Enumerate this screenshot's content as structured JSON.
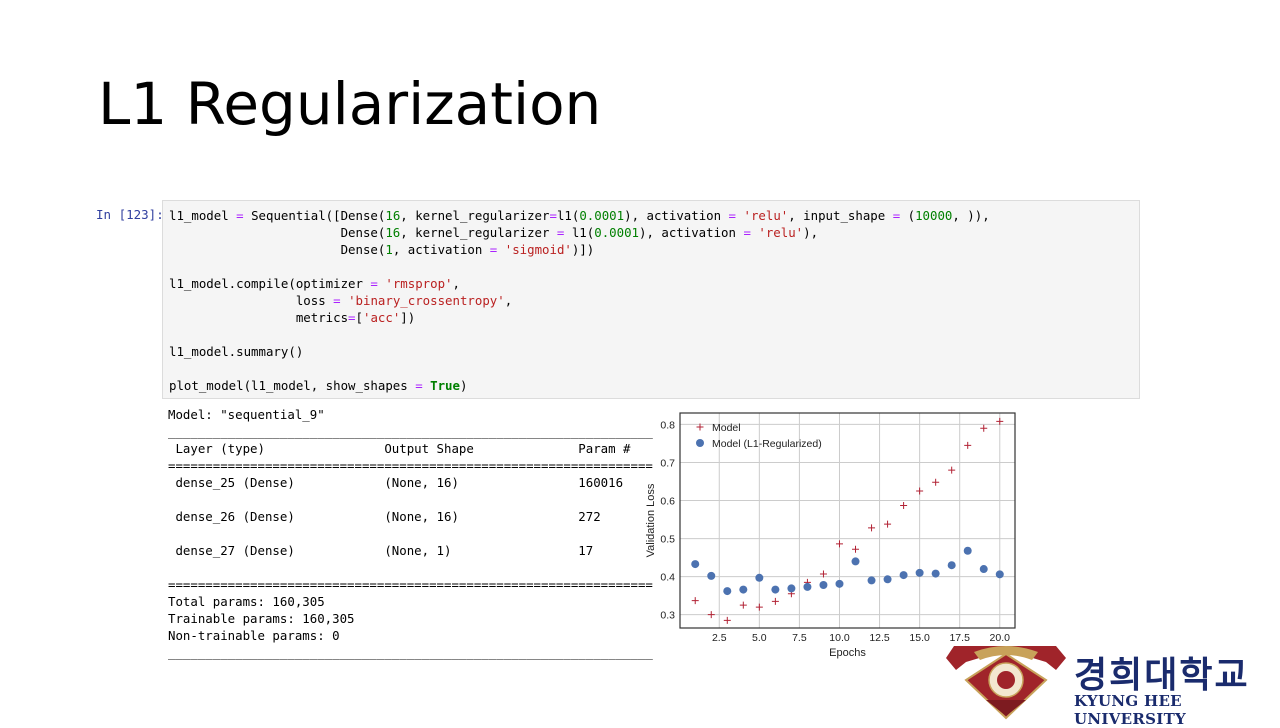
{
  "slide": {
    "title": "L1 Regularization"
  },
  "cell": {
    "prompt": "In [123]:",
    "code_lines": [
      "l1_model = Sequential([Dense(16, kernel_regularizer=l1(0.0001), activation = 'relu', input_shape = (10000, )),",
      "                       Dense(16, kernel_regularizer = l1(0.0001), activation = 'relu'),",
      "                       Dense(1, activation = 'sigmoid')])",
      "",
      "l1_model.compile(optimizer = 'rmsprop',",
      "                 loss = 'binary_crossentropy',",
      "                 metrics=['acc'])",
      "",
      "l1_model.summary()",
      "",
      "plot_model(l1_model, show_shapes = True)"
    ]
  },
  "summary": {
    "lines": [
      "Model: \"sequential_9\"",
      "_________________________________________________________________",
      " Layer (type)                Output Shape              Param #",
      "=================================================================",
      " dense_25 (Dense)            (None, 16)                160016",
      "",
      " dense_26 (Dense)            (None, 16)                272",
      "",
      " dense_27 (Dense)            (None, 1)                 17",
      "",
      "=================================================================",
      "Total params: 160,305",
      "Trainable params: 160,305",
      "Non-trainable params: 0",
      "_________________________________________________________________"
    ]
  },
  "chart_data": {
    "type": "scatter",
    "xlabel": "Epochs",
    "ylabel": "Validation Loss",
    "xlim": [
      0.05,
      20.95
    ],
    "ylim": [
      0.265,
      0.83
    ],
    "xticks": [
      "2.5",
      "5.0",
      "7.5",
      "10.0",
      "12.5",
      "15.0",
      "17.5",
      "20.0"
    ],
    "yticks": [
      "0.3",
      "0.4",
      "0.5",
      "0.6",
      "0.7",
      "0.8"
    ],
    "grid": true,
    "legend_position": "top-left",
    "series": [
      {
        "name": "Model",
        "marker": "plus",
        "color": "#b22234",
        "x": [
          1,
          2,
          3,
          4,
          5,
          6,
          7,
          8,
          9,
          10,
          11,
          12,
          13,
          14,
          15,
          16,
          17,
          18,
          19,
          20
        ],
        "y": [
          0.337,
          0.3,
          0.285,
          0.325,
          0.32,
          0.335,
          0.355,
          0.385,
          0.407,
          0.486,
          0.472,
          0.528,
          0.538,
          0.587,
          0.625,
          0.648,
          0.68,
          0.745,
          0.79,
          0.808
        ]
      },
      {
        "name": "Model (L1-Regularized)",
        "marker": "circle",
        "color": "#4c72b0",
        "x": [
          1,
          2,
          3,
          4,
          5,
          6,
          7,
          8,
          9,
          10,
          11,
          12,
          13,
          14,
          15,
          16,
          17,
          18,
          19,
          20
        ],
        "y": [
          0.433,
          0.402,
          0.362,
          0.366,
          0.397,
          0.366,
          0.369,
          0.373,
          0.378,
          0.381,
          0.44,
          0.39,
          0.393,
          0.404,
          0.41,
          0.408,
          0.43,
          0.468,
          0.42,
          0.406
        ]
      }
    ]
  },
  "logo": {
    "korean": "경희대학교",
    "english": "KYUNG HEE UNIVERSITY"
  }
}
